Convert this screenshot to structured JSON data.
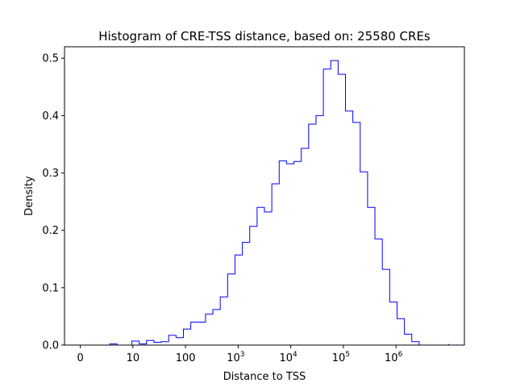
{
  "chart_data": {
    "type": "histogram-step",
    "title": "Histogram of CRE-TSS distance, based on: 25580 CREs",
    "xlabel": "Distance to TSS",
    "ylabel": "Density",
    "color": "#0000ff",
    "xscale": "log10(1 + distance)",
    "xlim_log": [
      -0.3,
      7.3
    ],
    "ylim": [
      0,
      0.52
    ],
    "y_ticks": [
      "0.0",
      "0.1",
      "0.2",
      "0.3",
      "0.4",
      "0.5"
    ],
    "x_ticks": [
      {
        "value": 0,
        "label": "0",
        "sup": ""
      },
      {
        "value": 1,
        "label": "10",
        "sup": ""
      },
      {
        "value": 2,
        "label": "100",
        "sup": ""
      },
      {
        "value": 3,
        "label": "10",
        "sup": "3"
      },
      {
        "value": 4,
        "label": "10",
        "sup": "4"
      },
      {
        "value": 5,
        "label": "10",
        "sup": "5"
      },
      {
        "value": 6,
        "label": "10",
        "sup": "6"
      }
    ],
    "bin_edges_log": [
      0.0,
      0.14,
      0.28,
      0.42,
      0.56,
      0.7,
      0.84,
      0.98,
      1.12,
      1.26,
      1.4,
      1.54,
      1.68,
      1.82,
      1.96,
      2.1,
      2.24,
      2.38,
      2.52,
      2.66,
      2.8,
      2.94,
      3.08,
      3.22,
      3.36,
      3.5,
      3.64,
      3.78,
      3.92,
      4.06,
      4.2,
      4.34,
      4.48,
      4.62,
      4.76,
      4.9,
      5.04,
      5.18,
      5.32,
      5.46,
      5.6,
      5.74,
      5.88,
      6.02,
      6.16,
      6.3,
      6.44,
      6.58,
      6.72,
      6.86,
      7.0
    ],
    "densities": [
      0.0,
      0.0,
      0.0,
      0.0,
      0.002,
      0.0,
      0.0,
      0.007,
      0.002,
      0.008,
      0.005,
      0.006,
      0.017,
      0.013,
      0.028,
      0.04,
      0.04,
      0.054,
      0.062,
      0.084,
      0.124,
      0.157,
      0.179,
      0.207,
      0.24,
      0.232,
      0.281,
      0.321,
      0.316,
      0.32,
      0.343,
      0.385,
      0.4,
      0.481,
      0.496,
      0.472,
      0.408,
      0.388,
      0.302,
      0.24,
      0.185,
      0.132,
      0.075,
      0.046,
      0.019,
      0.006,
      0.0,
      0.0,
      0.0,
      0.0,
      0.002
    ]
  }
}
